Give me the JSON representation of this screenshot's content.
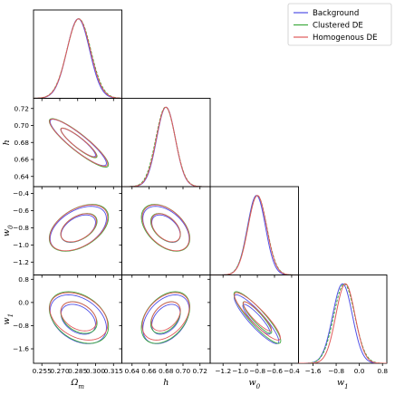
{
  "chart_data": {
    "type": "corner",
    "params": [
      {
        "key": "om",
        "label": "Ω",
        "sub": "m",
        "range": [
          0.248,
          0.322
        ],
        "ticks": [
          0.255,
          0.27,
          0.285,
          0.3,
          0.315
        ],
        "ticklabels": [
          "0.255",
          "0.270",
          "0.285",
          "0.300",
          "0.315"
        ]
      },
      {
        "key": "h",
        "label": "h",
        "sub": "",
        "range": [
          0.628,
          0.732
        ],
        "ticks": [
          0.64,
          0.66,
          0.68,
          0.7,
          0.72
        ],
        "ticklabels": [
          "0.64",
          "0.66",
          "0.68",
          "0.70",
          "0.72"
        ]
      },
      {
        "key": "w0",
        "label": "w",
        "sub": "0",
        "range": [
          -1.35,
          -0.32
        ],
        "ticks": [
          -1.2,
          -1.0,
          -0.8,
          -0.6,
          -0.4
        ],
        "ticklabels": [
          "−1.2",
          "−1.0",
          "−0.8",
          "−0.6",
          "−0.4"
        ]
      },
      {
        "key": "w1",
        "label": "w",
        "sub": "1",
        "range": [
          -2.1,
          0.95
        ],
        "ticks": [
          -1.6,
          -0.8,
          0.0,
          0.8
        ],
        "ticklabels": [
          "−1.6",
          "−0.8",
          "0.0",
          "0.8"
        ]
      }
    ],
    "series": [
      {
        "name": "Background",
        "color": "#5050e6",
        "mean": [
          0.2855,
          0.68,
          -0.81,
          -0.58
        ],
        "sigma": [
          0.0095,
          0.011,
          0.105,
          0.34
        ],
        "corr": [
          [
            1.0,
            -0.9,
            0.45,
            -0.35
          ],
          [
            -0.9,
            1.0,
            -0.45,
            0.4
          ],
          [
            0.45,
            -0.45,
            1.0,
            -0.9
          ],
          [
            -0.35,
            0.4,
            -0.9,
            1.0
          ]
        ],
        "ellipse_scale": [
          1.0,
          1.0,
          1.0
        ]
      },
      {
        "name": "Clustered DE",
        "color": "#3daa3d",
        "mean": [
          0.286,
          0.6795,
          -0.8,
          -0.52
        ],
        "sigma": [
          0.01,
          0.0115,
          0.11,
          0.36
        ],
        "corr": [
          [
            1.0,
            -0.9,
            0.45,
            -0.35
          ],
          [
            -0.9,
            1.0,
            -0.45,
            0.4
          ],
          [
            0.45,
            -0.45,
            1.0,
            -0.9
          ],
          [
            -0.35,
            0.4,
            -0.9,
            1.0
          ]
        ],
        "ellipse_scale": [
          1.0,
          1.0,
          1.0
        ]
      },
      {
        "name": "Homogenous DE",
        "color": "#e05a5a",
        "mean": [
          0.2858,
          0.6798,
          -0.8,
          -0.48
        ],
        "sigma": [
          0.0098,
          0.0112,
          0.108,
          0.33
        ],
        "corr": [
          [
            1.0,
            -0.9,
            0.45,
            -0.35
          ],
          [
            -0.9,
            1.0,
            -0.45,
            0.4
          ],
          [
            0.45,
            -0.45,
            1.0,
            -0.9
          ],
          [
            -0.35,
            0.4,
            -0.9,
            1.0
          ]
        ],
        "ellipse_scale": [
          1.0,
          1.0,
          1.0
        ]
      }
    ],
    "legend": {
      "placement": "top-right",
      "entries": [
        "Background",
        "Clustered DE",
        "Homogenous DE"
      ]
    },
    "grid": false
  }
}
